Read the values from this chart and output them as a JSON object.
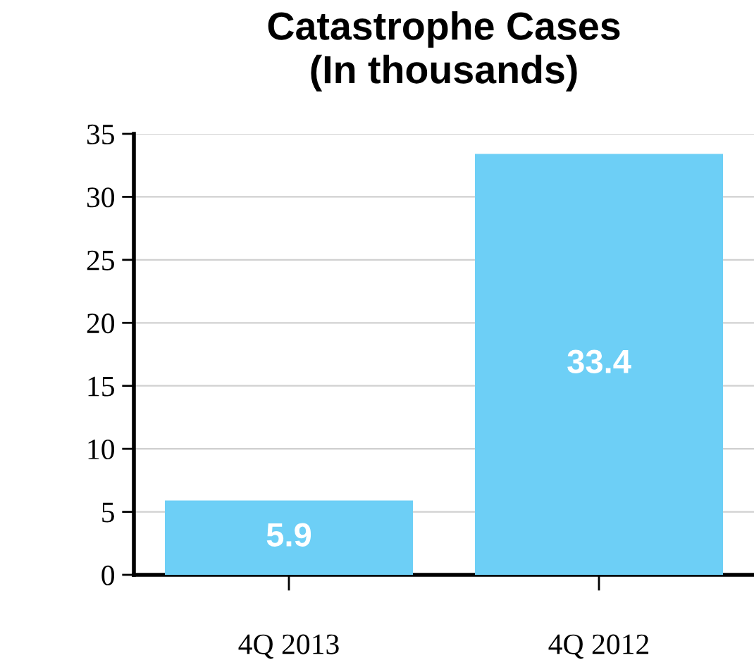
{
  "chart_data": {
    "type": "bar",
    "title": "Catastrophe Cases\n(In thousands)",
    "categories": [
      "4Q 2013",
      "4Q 2012"
    ],
    "values": [
      5.9,
      33.4
    ],
    "color": "#6dcff6",
    "ylim": [
      0,
      35
    ],
    "yticks": [
      0,
      5,
      10,
      15,
      20,
      25,
      30,
      35
    ],
    "grid": "y",
    "data_labels": true
  }
}
